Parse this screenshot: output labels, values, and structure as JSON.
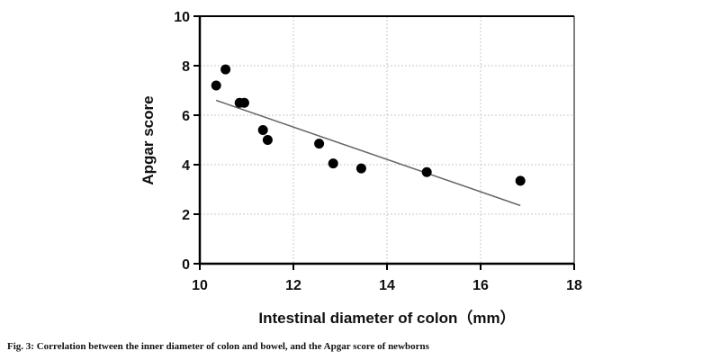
{
  "chart_data": {
    "type": "scatter",
    "xlabel": "Intestinal diameter of colon（mm）",
    "ylabel": "Apgar score",
    "xlim": [
      10,
      18
    ],
    "ylim": [
      0,
      10
    ],
    "xticks": [
      10,
      12,
      14,
      16,
      18
    ],
    "yticks": [
      0,
      2,
      4,
      6,
      8,
      10
    ],
    "grid": true,
    "points": [
      {
        "x": 10.35,
        "y": 7.2
      },
      {
        "x": 10.55,
        "y": 7.85
      },
      {
        "x": 10.85,
        "y": 6.5
      },
      {
        "x": 10.95,
        "y": 6.5
      },
      {
        "x": 11.35,
        "y": 5.4
      },
      {
        "x": 11.45,
        "y": 5.0
      },
      {
        "x": 12.55,
        "y": 4.85
      },
      {
        "x": 12.85,
        "y": 4.05
      },
      {
        "x": 13.45,
        "y": 3.85
      },
      {
        "x": 14.85,
        "y": 3.7
      },
      {
        "x": 16.85,
        "y": 3.35
      }
    ],
    "trendline": {
      "x": [
        10.35,
        16.85
      ],
      "y": [
        6.6,
        2.35
      ]
    }
  },
  "caption": "Fig. 3: Correlation between the inner diameter of colon and bowel, and the Apgar score of newborns"
}
